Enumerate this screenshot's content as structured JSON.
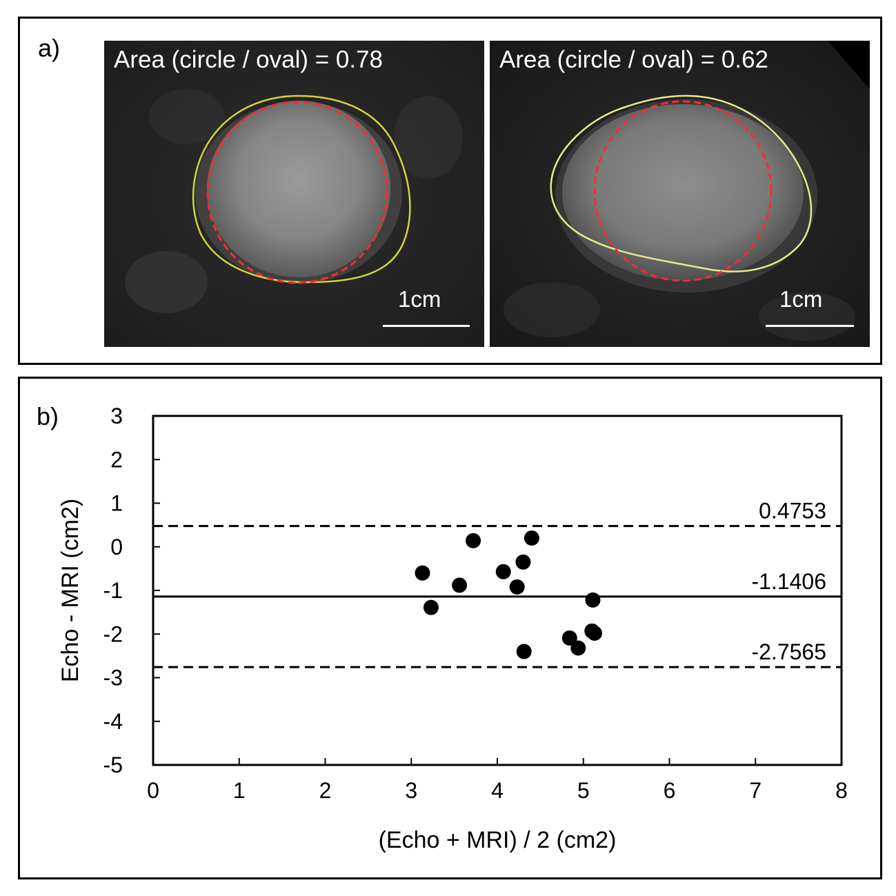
{
  "panel_a": {
    "label": "a)",
    "images": [
      {
        "caption": "Area (circle / oval) = 0.78",
        "scale_label": "1cm"
      },
      {
        "caption": "Area (circle / oval) = 0.62",
        "scale_label": "1cm"
      }
    ],
    "colors": {
      "contour": "#d4d43a",
      "circle": "#ff2a2a"
    }
  },
  "panel_b": {
    "label": "b)"
  },
  "chart_data": {
    "type": "scatter",
    "title": "",
    "xlabel": "(Echo + MRI) / 2 (cm2)",
    "ylabel": "Echo - MRI (cm2)",
    "xlim": [
      0,
      8
    ],
    "ylim": [
      -5,
      3
    ],
    "xticks": [
      0,
      1,
      2,
      3,
      4,
      5,
      6,
      7,
      8
    ],
    "yticks": [
      3,
      2,
      1,
      0,
      -1,
      -2,
      -3,
      -4,
      -5
    ],
    "points": [
      {
        "x": 3.13,
        "y": -0.6
      },
      {
        "x": 3.23,
        "y": -1.39
      },
      {
        "x": 3.56,
        "y": -0.88
      },
      {
        "x": 3.72,
        "y": 0.14
      },
      {
        "x": 4.07,
        "y": -0.57
      },
      {
        "x": 4.23,
        "y": -0.92
      },
      {
        "x": 4.3,
        "y": -0.35
      },
      {
        "x": 4.4,
        "y": 0.2
      },
      {
        "x": 4.31,
        "y": -2.4
      },
      {
        "x": 4.84,
        "y": -2.09
      },
      {
        "x": 4.94,
        "y": -2.32
      },
      {
        "x": 5.11,
        "y": -1.22
      },
      {
        "x": 5.1,
        "y": -1.93
      },
      {
        "x": 5.13,
        "y": -1.98
      }
    ],
    "reference_lines": [
      {
        "name": "upper limit of agreement",
        "y": 0.4753,
        "label": "0.4753",
        "style": "dashed"
      },
      {
        "name": "mean difference",
        "y": -1.1406,
        "label": "-1.1406",
        "style": "solid"
      },
      {
        "name": "lower limit of agreement",
        "y": -2.7565,
        "label": "-2.7565",
        "style": "dashed"
      }
    ]
  }
}
